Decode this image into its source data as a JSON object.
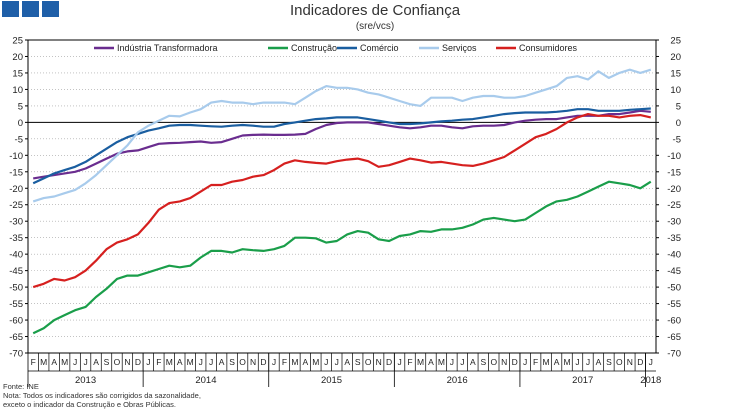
{
  "header": {
    "title": "Indicadores de Confiança",
    "subtitle": "(sre/vcs)"
  },
  "footer": {
    "source": "Fonte: INE",
    "note_line1": "Nota: Todos os indicadores são corrigidos da sazonalidade,",
    "note_line2": "exceto o indicador da Construção e Obras Públicas."
  },
  "colors": {
    "logo": "#1f5fa8",
    "axis": "#000000",
    "grid": "#a0a0a0"
  },
  "chart_data": {
    "type": "line",
    "title": "Indicadores de Confiança",
    "subtitle": "(sre/vcs)",
    "ylim": [
      -70,
      25
    ],
    "y_ticks": [
      25,
      20,
      15,
      10,
      5,
      0,
      -5,
      -10,
      -15,
      -20,
      -25,
      -30,
      -35,
      -40,
      -45,
      -50,
      -55,
      -60,
      -65,
      -70
    ],
    "secondary_y_axis": true,
    "grid": "horizontal dotted",
    "legend_position": "top",
    "months": [
      "F",
      "M",
      "A",
      "M",
      "J",
      "J",
      "A",
      "S",
      "O",
      "N",
      "D",
      "J",
      "F",
      "M",
      "A",
      "M",
      "J",
      "J",
      "A",
      "S",
      "O",
      "N",
      "D",
      "J",
      "F",
      "M",
      "A",
      "M",
      "J",
      "J",
      "A",
      "S",
      "O",
      "N",
      "D",
      "J",
      "F",
      "M",
      "A",
      "M",
      "J",
      "J",
      "A",
      "S",
      "O",
      "N",
      "D",
      "J",
      "F",
      "M",
      "A",
      "M",
      "J",
      "J",
      "A",
      "S",
      "O",
      "N",
      "D",
      "J"
    ],
    "years": [
      {
        "label": "2013",
        "start": 0,
        "end": 10
      },
      {
        "label": "2014",
        "start": 11,
        "end": 22
      },
      {
        "label": "2015",
        "start": 23,
        "end": 34
      },
      {
        "label": "2016",
        "start": 35,
        "end": 46
      },
      {
        "label": "2017",
        "start": 47,
        "end": 58
      },
      {
        "label": "2018",
        "start": 59,
        "end": 59
      }
    ],
    "series": [
      {
        "name": "Indústria Transformadora",
        "color": "#6a2d8f",
        "values": [
          -17.0,
          -16.5,
          -16.0,
          -15.5,
          -15.0,
          -14.0,
          -12.5,
          -11.0,
          -9.5,
          -8.8,
          -8.5,
          -7.5,
          -6.5,
          -6.3,
          -6.2,
          -6.0,
          -5.8,
          -6.2,
          -6.0,
          -5.0,
          -4.0,
          -3.8,
          -3.7,
          -3.8,
          -3.8,
          -3.7,
          -3.5,
          -2.0,
          -0.8,
          -0.2,
          0.0,
          0.0,
          0.0,
          -0.5,
          -1.0,
          -1.5,
          -1.8,
          -1.5,
          -1.0,
          -1.0,
          -1.5,
          -1.8,
          -1.2,
          -1.0,
          -1.0,
          -0.8,
          0.0,
          0.5,
          0.8,
          1.0,
          1.0,
          1.5,
          2.0,
          2.0,
          2.0,
          2.5,
          2.5,
          3.0,
          3.5,
          3.2
        ]
      },
      {
        "name": "Construção",
        "color": "#1a9e4a",
        "values": [
          -64.0,
          -62.5,
          -60.0,
          -58.5,
          -57.0,
          -56.0,
          -53.0,
          -50.5,
          -47.5,
          -46.5,
          -46.5,
          -45.5,
          -44.5,
          -43.5,
          -44.0,
          -43.5,
          -41.0,
          -39.0,
          -39.0,
          -39.5,
          -38.5,
          -38.8,
          -39.0,
          -38.5,
          -37.5,
          -35.0,
          -35.0,
          -35.2,
          -36.5,
          -36.0,
          -34.0,
          -33.0,
          -33.5,
          -35.5,
          -36.0,
          -34.5,
          -34.0,
          -33.0,
          -33.2,
          -32.5,
          -32.5,
          -32.0,
          -31.0,
          -29.5,
          -29.0,
          -29.5,
          -30.0,
          -29.5,
          -27.5,
          -25.5,
          -24.0,
          -23.5,
          -22.5,
          -21.0,
          -19.5,
          -18.0,
          -18.5,
          -19.0,
          -20.0,
          -18.0
        ]
      },
      {
        "name": "Comércio",
        "color": "#1a5ea0",
        "values": [
          -18.5,
          -17.0,
          -15.5,
          -14.5,
          -13.5,
          -12.0,
          -10.0,
          -8.0,
          -6.0,
          -4.5,
          -3.5,
          -2.5,
          -1.8,
          -1.0,
          -0.8,
          -0.8,
          -1.0,
          -1.2,
          -1.3,
          -1.0,
          -0.8,
          -1.0,
          -1.3,
          -1.3,
          -0.5,
          0.0,
          0.5,
          1.0,
          1.2,
          1.5,
          1.5,
          1.5,
          1.0,
          0.5,
          0.0,
          -0.5,
          -0.5,
          -0.3,
          0.0,
          0.3,
          0.5,
          0.8,
          1.0,
          1.5,
          2.0,
          2.5,
          2.8,
          3.0,
          3.0,
          3.0,
          3.2,
          3.5,
          4.0,
          4.0,
          3.5,
          3.5,
          3.5,
          3.8,
          4.0,
          4.2
        ]
      },
      {
        "name": "Serviços",
        "color": "#a8cbec",
        "values": [
          -24.0,
          -23.0,
          -22.5,
          -21.5,
          -20.5,
          -18.5,
          -16.0,
          -13.0,
          -10.0,
          -7.0,
          -3.0,
          -1.0,
          0.5,
          2.0,
          1.8,
          3.0,
          4.0,
          6.0,
          6.5,
          6.0,
          6.0,
          5.5,
          6.0,
          6.0,
          6.0,
          5.5,
          7.5,
          9.5,
          11.0,
          10.5,
          10.5,
          10.0,
          9.0,
          8.5,
          7.5,
          6.5,
          5.5,
          5.0,
          7.5,
          7.5,
          7.5,
          6.5,
          7.5,
          8.0,
          8.0,
          7.5,
          7.5,
          8.0,
          9.0,
          10.0,
          11.0,
          13.5,
          14.0,
          13.0,
          15.5,
          13.5,
          15.0,
          16.0,
          15.0,
          16.0
        ]
      },
      {
        "name": "Consumidores",
        "color": "#d6201f",
        "values": [
          -50.0,
          -49.0,
          -47.5,
          -48.0,
          -47.0,
          -45.0,
          -42.0,
          -38.5,
          -36.5,
          -35.5,
          -34.0,
          -30.5,
          -26.5,
          -24.5,
          -24.0,
          -23.0,
          -21.0,
          -19.0,
          -19.0,
          -18.0,
          -17.5,
          -16.5,
          -16.0,
          -14.5,
          -12.5,
          -11.5,
          -12.0,
          -12.3,
          -12.5,
          -11.8,
          -11.3,
          -11.0,
          -11.8,
          -13.5,
          -13.0,
          -12.0,
          -11.0,
          -11.5,
          -12.2,
          -12.0,
          -12.5,
          -13.0,
          -13.2,
          -12.5,
          -11.5,
          -10.5,
          -8.5,
          -6.5,
          -4.5,
          -3.5,
          -2.0,
          0.0,
          1.5,
          2.5,
          2.0,
          2.0,
          1.5,
          2.0,
          2.2,
          1.5
        ]
      }
    ]
  }
}
